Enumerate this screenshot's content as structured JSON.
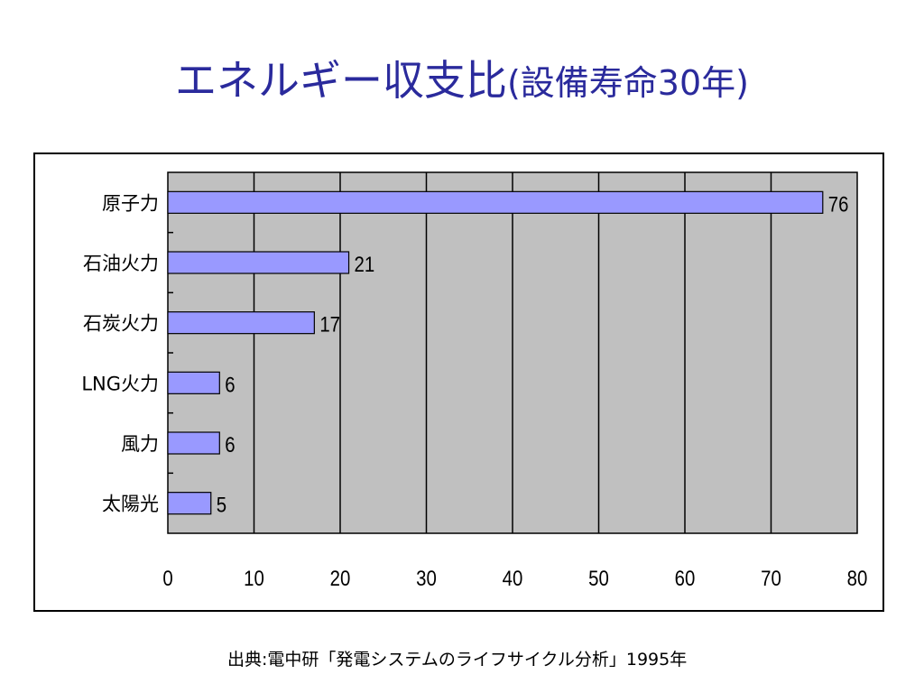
{
  "slide": {
    "title_main": "エネルギー収支比",
    "title_sub": "(設備寿命30年)",
    "source_note": "出典:電中研「発電システムのライフサイクル分析」1995年"
  },
  "colors": {
    "title": "#2a2a9c",
    "plot_background": "#c0c0c0",
    "bar_fill": "#9999ff",
    "bar_stroke": "#000000",
    "gridline": "#000000"
  },
  "chart_data": {
    "type": "bar",
    "orientation": "horizontal",
    "title": "",
    "xlabel": "",
    "ylabel": "",
    "categories": [
      "原子力",
      "石油火力",
      "石炭火力",
      "LNG火力",
      "風力",
      "太陽光"
    ],
    "values": [
      76,
      21,
      17,
      6,
      6,
      5
    ],
    "data_labels": [
      "76",
      "21",
      "17",
      "6",
      "6",
      "5"
    ],
    "xlim": [
      0,
      80
    ],
    "x_ticks": [
      0,
      10,
      20,
      30,
      40,
      50,
      60,
      70,
      80
    ],
    "x_tick_labels": [
      "0",
      "10",
      "20",
      "30",
      "40",
      "50",
      "60",
      "70",
      "80"
    ],
    "grid": "vertical",
    "legend": "none"
  }
}
